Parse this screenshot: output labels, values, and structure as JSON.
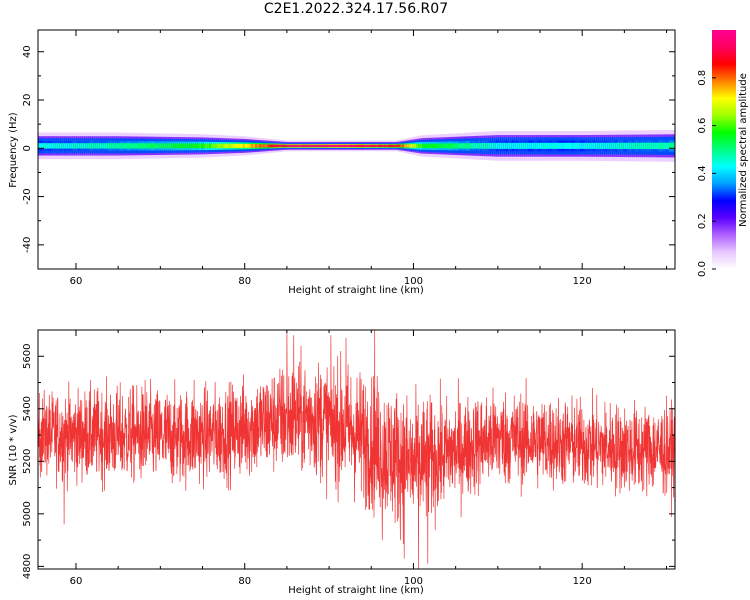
{
  "title": "C2E1.2022.324.17.56.R07",
  "colors": {
    "snr_line": "#f03434",
    "colormap": [
      "#ffffff",
      "#e8c8ff",
      "#b060ff",
      "#5a00ff",
      "#0000ff",
      "#00a0ff",
      "#00ffff",
      "#00ff80",
      "#00ff00",
      "#a0ff00",
      "#ffff00",
      "#ff8000",
      "#ff0000",
      "#ff0060",
      "#ff0090"
    ]
  },
  "chart_data": [
    {
      "type": "heatmap",
      "xlabel": "Height of straight line (km)",
      "ylabel": "Frequency (Hz)",
      "xlim": [
        55.5,
        131
      ],
      "ylim": [
        -50,
        49
      ],
      "xticks": [
        60,
        80,
        100,
        120
      ],
      "yticks": [
        -40,
        -20,
        0,
        20,
        40
      ],
      "xtick_labels": [
        "60",
        "80",
        "100",
        "120"
      ],
      "ytick_labels": [
        "-40",
        "-20",
        "0",
        "20",
        "40"
      ],
      "band_center_hz": 1,
      "band_profile": [
        {
          "x": 56,
          "halfwidth_hz": 2.5,
          "peak": 0.45
        },
        {
          "x": 65,
          "halfwidth_hz": 2.5,
          "peak": 0.5
        },
        {
          "x": 75,
          "halfwidth_hz": 2.2,
          "peak": 0.6
        },
        {
          "x": 80,
          "halfwidth_hz": 1.8,
          "peak": 0.75
        },
        {
          "x": 85,
          "halfwidth_hz": 1.0,
          "peak": 0.95
        },
        {
          "x": 92,
          "halfwidth_hz": 1.0,
          "peak": 1.0
        },
        {
          "x": 98,
          "halfwidth_hz": 1.0,
          "peak": 0.9
        },
        {
          "x": 101,
          "halfwidth_hz": 2.0,
          "peak": 0.6
        },
        {
          "x": 110,
          "halfwidth_hz": 2.8,
          "peak": 0.45
        },
        {
          "x": 120,
          "halfwidth_hz": 2.8,
          "peak": 0.45
        },
        {
          "x": 131,
          "halfwidth_hz": 3.0,
          "peak": 0.5
        }
      ],
      "colorbar": {
        "label": "Normalized spectral amplitude",
        "range": [
          0,
          1
        ],
        "ticks": [
          0.0,
          0.2,
          0.4,
          0.6,
          0.8
        ],
        "tick_labels": [
          "0.0",
          "0.2",
          "0.4",
          "0.6",
          "0.8"
        ]
      }
    },
    {
      "type": "line",
      "xlabel": "Height of straight line (km)",
      "ylabel": "SNR (10 * v/v)",
      "xlim": [
        55.5,
        131
      ],
      "ylim": [
        4790,
        5700
      ],
      "xticks": [
        60,
        80,
        100,
        120
      ],
      "yticks": [
        4800,
        5000,
        5200,
        5400,
        5600
      ],
      "xtick_labels": [
        "60",
        "80",
        "100",
        "120"
      ],
      "ytick_labels": [
        "4800",
        "5000",
        "5200",
        "5400",
        "5600"
      ],
      "series": [
        {
          "color": "#f03434",
          "envelope": [
            {
              "x": 56,
              "mean": 5300,
              "sd": 80
            },
            {
              "x": 60,
              "mean": 5300,
              "sd": 85
            },
            {
              "x": 66,
              "mean": 5300,
              "sd": 90
            },
            {
              "x": 72,
              "mean": 5290,
              "sd": 90
            },
            {
              "x": 78,
              "mean": 5310,
              "sd": 90
            },
            {
              "x": 84,
              "mean": 5360,
              "sd": 100
            },
            {
              "x": 88,
              "mean": 5370,
              "sd": 110
            },
            {
              "x": 92,
              "mean": 5330,
              "sd": 120
            },
            {
              "x": 96,
              "mean": 5250,
              "sd": 130
            },
            {
              "x": 100,
              "mean": 5180,
              "sd": 130
            },
            {
              "x": 104,
              "mean": 5230,
              "sd": 100
            },
            {
              "x": 110,
              "mean": 5290,
              "sd": 90
            },
            {
              "x": 118,
              "mean": 5270,
              "sd": 85
            },
            {
              "x": 124,
              "mean": 5250,
              "sd": 85
            },
            {
              "x": 131,
              "mean": 5240,
              "sd": 85
            }
          ],
          "spikes": [
            {
              "x": 58.6,
              "y": 4960
            },
            {
              "x": 68.2,
              "y": 5510
            },
            {
              "x": 74.0,
              "y": 5510
            },
            {
              "x": 85.0,
              "y": 5690
            },
            {
              "x": 85.8,
              "y": 5680
            },
            {
              "x": 92.0,
              "y": 5670
            },
            {
              "x": 95.4,
              "y": 5700
            },
            {
              "x": 96.3,
              "y": 4900
            },
            {
              "x": 98.9,
              "y": 4830
            },
            {
              "x": 100.6,
              "y": 4790
            },
            {
              "x": 101.7,
              "y": 4810
            }
          ]
        }
      ]
    }
  ]
}
